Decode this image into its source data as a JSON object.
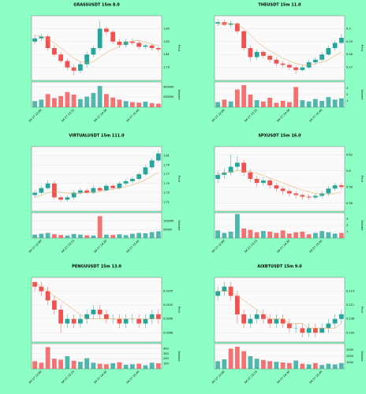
{
  "chart_data": [
    {
      "type": "candlestick",
      "title": "GRASSUSDT 15m 8.0",
      "ylabel": "Price",
      "categories": [
        null,
        "04-27 12:00",
        null,
        null,
        null,
        null,
        "04-27 13:15",
        null,
        null,
        null,
        null,
        "04-27 14:30",
        null,
        null,
        null,
        null,
        "04-27 15:45",
        null,
        null,
        null
      ],
      "open": [
        1.83,
        1.835,
        1.838,
        1.82,
        1.81,
        1.8,
        1.79,
        1.785,
        1.795,
        1.81,
        1.82,
        1.85,
        1.845,
        1.83,
        1.825,
        1.83,
        1.828,
        1.822,
        1.824,
        1.82
      ],
      "high": [
        1.84,
        1.842,
        1.841,
        1.824,
        1.814,
        1.804,
        1.794,
        1.799,
        1.814,
        1.824,
        1.862,
        1.853,
        1.848,
        1.834,
        1.834,
        1.834,
        1.831,
        1.827,
        1.827,
        1.823
      ],
      "low": [
        1.826,
        1.831,
        1.816,
        1.806,
        1.796,
        1.786,
        1.778,
        1.781,
        1.79,
        1.806,
        1.816,
        1.84,
        1.826,
        1.82,
        1.821,
        1.825,
        1.818,
        1.819,
        1.816,
        1.814
      ],
      "close": [
        1.835,
        1.838,
        1.82,
        1.81,
        1.8,
        1.79,
        1.785,
        1.795,
        1.81,
        1.82,
        1.85,
        1.845,
        1.83,
        1.825,
        1.83,
        1.828,
        1.822,
        1.824,
        1.82,
        1.818
      ],
      "ma": [
        1.84,
        1.838,
        1.834,
        1.828,
        1.82,
        1.812,
        1.804,
        1.799,
        1.797,
        1.799,
        1.806,
        1.813,
        1.818,
        1.823,
        1.828,
        1.831,
        1.832,
        1.829,
        1.826,
        1.824
      ],
      "ylim": [
        1.77,
        1.87
      ],
      "yticks": [
        1.79,
        1.81,
        1.83,
        1.85
      ],
      "volume": {
        "ylabel": "Volume",
        "values": [
          120000,
          150000,
          260000,
          180000,
          220000,
          300000,
          250000,
          160000,
          210000,
          280000,
          420000,
          260000,
          190000,
          150000,
          120000,
          100000,
          90000,
          110000,
          80000,
          70000
        ],
        "ylim": [
          0,
          500000
        ],
        "yticks": [
          200000,
          400000
        ]
      },
      "up_color": "#26a69a",
      "down_color": "#ef5350",
      "ma_color": "#e0a050"
    },
    {
      "type": "candlestick",
      "title": "THEUSDT 15m 11.0",
      "ylabel": "Price",
      "categories": [
        null,
        "04-27 12:00",
        null,
        null,
        null,
        null,
        "04-27 13:15",
        null,
        null,
        null,
        null,
        "04-27 14:30",
        null,
        null,
        null,
        null,
        "04-27 15:45",
        null,
        null,
        null
      ],
      "open": [
        0.304,
        0.305,
        0.303,
        0.304,
        0.298,
        0.285,
        0.278,
        0.282,
        0.279,
        0.276,
        0.273,
        0.272,
        0.27,
        0.268,
        0.27,
        0.274,
        0.276,
        0.28,
        0.285,
        0.289
      ],
      "high": [
        0.307,
        0.307,
        0.306,
        0.305,
        0.299,
        0.287,
        0.284,
        0.283,
        0.28,
        0.278,
        0.275,
        0.274,
        0.271,
        0.272,
        0.276,
        0.278,
        0.282,
        0.287,
        0.291,
        0.296
      ],
      "low": [
        0.302,
        0.302,
        0.301,
        0.296,
        0.283,
        0.275,
        0.276,
        0.277,
        0.274,
        0.271,
        0.27,
        0.268,
        0.265,
        0.267,
        0.269,
        0.272,
        0.275,
        0.279,
        0.283,
        0.288
      ],
      "close": [
        0.305,
        0.303,
        0.304,
        0.298,
        0.285,
        0.278,
        0.282,
        0.279,
        0.276,
        0.273,
        0.272,
        0.27,
        0.268,
        0.27,
        0.274,
        0.276,
        0.28,
        0.285,
        0.289,
        0.293
      ],
      "ma": [
        0.303,
        0.304,
        0.304,
        0.303,
        0.3,
        0.295,
        0.29,
        0.286,
        0.283,
        0.28,
        0.277,
        0.275,
        0.273,
        0.272,
        0.272,
        0.273,
        0.274,
        0.276,
        0.279,
        0.282
      ],
      "ylim": [
        0.26,
        0.31
      ],
      "yticks": [
        0.27,
        0.28,
        0.29,
        0.3
      ],
      "volume": {
        "ylabel": "Volume",
        "values": [
          0.8,
          1.2,
          0.9,
          2.8,
          3.5,
          2,
          1.1,
          0.9,
          1.5,
          0.7,
          1,
          0.8,
          3.2,
          1.1,
          0.9,
          1.3,
          1,
          1.6,
          1.2,
          1.4
        ],
        "ylim": [
          0,
          4
        ],
        "yticks": [
          1,
          2,
          3
        ]
      },
      "up_color": "#26a69a",
      "down_color": "#ef5350",
      "ma_color": "#e0a050"
    },
    {
      "type": "candlestick",
      "title": "VIRTUALUSDT 15m 111.0",
      "ylabel": "Price",
      "categories": [
        null,
        "04-27 12:00",
        null,
        null,
        null,
        null,
        "04-27 13:15",
        null,
        null,
        null,
        null,
        "04-27 14:30",
        null,
        null,
        null,
        null,
        "04-27 15:45",
        null,
        null,
        null
      ],
      "open": [
        1.725,
        1.73,
        1.74,
        1.75,
        1.72,
        1.715,
        1.72,
        1.73,
        1.735,
        1.73,
        1.74,
        1.735,
        1.745,
        1.74,
        1.75,
        1.755,
        1.76,
        1.77,
        1.785,
        1.8
      ],
      "high": [
        1.735,
        1.745,
        1.757,
        1.755,
        1.724,
        1.724,
        1.735,
        1.74,
        1.739,
        1.745,
        1.743,
        1.749,
        1.748,
        1.754,
        1.759,
        1.764,
        1.774,
        1.79,
        1.805,
        1.822
      ],
      "low": [
        1.72,
        1.726,
        1.736,
        1.716,
        1.71,
        1.711,
        1.716,
        1.726,
        1.727,
        1.727,
        1.731,
        1.732,
        1.737,
        1.737,
        1.746,
        1.751,
        1.756,
        1.766,
        1.781,
        1.796
      ],
      "close": [
        1.73,
        1.74,
        1.75,
        1.72,
        1.715,
        1.72,
        1.73,
        1.735,
        1.73,
        1.74,
        1.735,
        1.745,
        1.74,
        1.75,
        1.755,
        1.76,
        1.77,
        1.785,
        1.8,
        1.815
      ],
      "ma": [
        1.72,
        1.724,
        1.73,
        1.733,
        1.731,
        1.729,
        1.728,
        1.729,
        1.73,
        1.732,
        1.733,
        1.735,
        1.737,
        1.74,
        1.743,
        1.747,
        1.752,
        1.758,
        1.766,
        1.775
      ],
      "ylim": [
        1.69,
        1.83
      ],
      "yticks": [
        1.71,
        1.73,
        1.75,
        1.77,
        1.79,
        1.81
      ],
      "volume": {
        "ylabel": "Volume",
        "values": [
          20000,
          25000,
          30000,
          22000,
          18000,
          15000,
          24000,
          20000,
          16000,
          14000,
          130000,
          20000,
          18000,
          22000,
          17000,
          25000,
          30000,
          28000,
          35000,
          40000
        ],
        "ylim": [
          0,
          150000
        ],
        "yticks": [
          50000,
          100000
        ]
      },
      "up_color": "#26a69a",
      "down_color": "#ef5350",
      "ma_color": "#e0a050"
    },
    {
      "type": "candlestick",
      "title": "SPXUSDT 15m 16.0",
      "ylabel": "Price",
      "categories": [
        null,
        "04-27 12:00",
        null,
        null,
        null,
        null,
        "04-27 13:15",
        null,
        null,
        null,
        null,
        "04-27 14:30",
        null,
        null,
        null,
        null,
        "04-27 15:45",
        null,
        null,
        null
      ],
      "open": [
        0.59,
        0.595,
        0.598,
        0.605,
        0.61,
        0.598,
        0.59,
        0.585,
        0.588,
        0.582,
        0.578,
        0.575,
        0.572,
        0.57,
        0.568,
        0.567,
        0.569,
        0.572,
        0.578,
        0.582
      ],
      "high": [
        0.6,
        0.603,
        0.62,
        0.618,
        0.614,
        0.602,
        0.594,
        0.592,
        0.591,
        0.585,
        0.581,
        0.578,
        0.575,
        0.572,
        0.571,
        0.572,
        0.575,
        0.581,
        0.585,
        0.585
      ],
      "low": [
        0.585,
        0.59,
        0.594,
        0.6,
        0.594,
        0.586,
        0.58,
        0.582,
        0.578,
        0.574,
        0.571,
        0.568,
        0.566,
        0.564,
        0.564,
        0.565,
        0.566,
        0.569,
        0.575,
        0.577
      ],
      "close": [
        0.595,
        0.598,
        0.605,
        0.61,
        0.598,
        0.59,
        0.585,
        0.588,
        0.582,
        0.578,
        0.575,
        0.572,
        0.57,
        0.568,
        0.567,
        0.569,
        0.572,
        0.578,
        0.582,
        0.58
      ],
      "ma": [
        0.596,
        0.597,
        0.599,
        0.6,
        0.6,
        0.599,
        0.597,
        0.594,
        0.591,
        0.588,
        0.585,
        0.582,
        0.579,
        0.576,
        0.574,
        0.572,
        0.571,
        0.571,
        0.572,
        0.574
      ],
      "ylim": [
        0.55,
        0.63
      ],
      "yticks": [
        0.56,
        0.58,
        0.6,
        0.62
      ],
      "volume": {
        "ylabel": "Volume",
        "values": [
          1.2,
          0.8,
          1,
          3.8,
          1.5,
          1.3,
          0.9,
          1.1,
          1,
          0.8,
          1.2,
          0.7,
          0.9,
          1,
          0.6,
          0.8,
          1.1,
          0.9,
          0.7,
          0.8
        ],
        "ylim": [
          0,
          4
        ],
        "yticks": [
          1,
          2,
          3
        ]
      },
      "up_color": "#26a69a",
      "down_color": "#ef5350",
      "ma_color": "#e0a050"
    },
    {
      "type": "candlestick",
      "title": "PENGUUSDT 15m 13.0",
      "ylabel": "Price",
      "categories": [
        null,
        "04-27 12:00",
        null,
        null,
        null,
        null,
        "04-27 13:15",
        null,
        null,
        null,
        null,
        "04-27 14:30",
        null,
        null,
        null,
        null,
        "04-27 15:45",
        null,
        null,
        null
      ],
      "open": [
        0.0107,
        0.0106,
        0.0105,
        0.0103,
        0.0101,
        0.0098,
        0.0099,
        0.0098,
        0.0099,
        0.01,
        0.0101,
        0.01,
        0.0099,
        0.0099,
        0.0098,
        0.0099,
        0.0099,
        0.0098,
        0.0099,
        0.01
      ],
      "high": [
        0.0107,
        0.0107,
        0.0106,
        0.0104,
        0.0102,
        0.01,
        0.01,
        0.01,
        0.0101,
        0.0102,
        0.0102,
        0.0101,
        0.01,
        0.01,
        0.01,
        0.01,
        0.01,
        0.01,
        0.0101,
        0.0101
      ],
      "low": [
        0.0105,
        0.0104,
        0.0102,
        0.01,
        0.0096,
        0.0097,
        0.0097,
        0.0097,
        0.0098,
        0.0099,
        0.0099,
        0.0098,
        0.0098,
        0.0097,
        0.0097,
        0.0098,
        0.0097,
        0.0097,
        0.0098,
        0.0098
      ],
      "close": [
        0.0106,
        0.0105,
        0.0103,
        0.0101,
        0.0098,
        0.0099,
        0.0098,
        0.0099,
        0.01,
        0.0101,
        0.01,
        0.0099,
        0.0099,
        0.0098,
        0.0099,
        0.0099,
        0.0098,
        0.0099,
        0.01,
        0.0099
      ],
      "ma": [
        0.0107,
        0.0106,
        0.0105,
        0.0104,
        0.0103,
        0.0102,
        0.0101,
        0.01,
        0.0099,
        0.0099,
        0.0099,
        0.0099,
        0.0099,
        0.0099,
        0.0099,
        0.0099,
        0.0099,
        0.0099,
        0.0099,
        0.0099
      ],
      "ylim": [
        0.0094,
        0.0108
      ],
      "yticks": [
        0.0096,
        0.0099,
        0.0102,
        0.0105
      ],
      "volume": {
        "ylabel": "Volume",
        "values": [
          150,
          120,
          430,
          200,
          180,
          250,
          160,
          140,
          210,
          120,
          100,
          90,
          110,
          130,
          80,
          90,
          100,
          70,
          120,
          110
        ],
        "ylim": [
          0,
          500
        ],
        "yticks": [
          100,
          200,
          300,
          400
        ]
      },
      "up_color": "#26a69a",
      "down_color": "#ef5350",
      "ma_color": "#e0a050"
    },
    {
      "type": "candlestick",
      "title": "AIXBTUSDT 15m 9.0",
      "ylabel": "Price",
      "categories": [
        null,
        "04-27 12:00",
        null,
        null,
        null,
        null,
        "04-27 13:15",
        null,
        null,
        null,
        null,
        "04-27 14:30",
        null,
        null,
        null,
        null,
        "04-27 15:45",
        null,
        null,
        null
      ],
      "open": [
        0.113,
        0.114,
        0.115,
        0.113,
        0.109,
        0.107,
        0.108,
        0.109,
        0.108,
        0.107,
        0.108,
        0.107,
        0.106,
        0.106,
        0.105,
        0.106,
        0.105,
        0.106,
        0.107,
        0.108
      ],
      "high": [
        0.115,
        0.116,
        0.116,
        0.114,
        0.11,
        0.109,
        0.11,
        0.11,
        0.109,
        0.109,
        0.109,
        0.108,
        0.107,
        0.107,
        0.107,
        0.107,
        0.107,
        0.108,
        0.109,
        0.11
      ],
      "low": [
        0.112,
        0.113,
        0.112,
        0.107,
        0.106,
        0.106,
        0.107,
        0.107,
        0.106,
        0.106,
        0.106,
        0.105,
        0.105,
        0.104,
        0.104,
        0.104,
        0.105,
        0.105,
        0.106,
        0.107
      ],
      "close": [
        0.114,
        0.115,
        0.113,
        0.109,
        0.107,
        0.108,
        0.109,
        0.108,
        0.107,
        0.108,
        0.107,
        0.106,
        0.106,
        0.105,
        0.106,
        0.105,
        0.106,
        0.107,
        0.108,
        0.109
      ],
      "ma": [
        0.114,
        0.114,
        0.114,
        0.113,
        0.112,
        0.111,
        0.11,
        0.109,
        0.108,
        0.108,
        0.108,
        0.107,
        0.107,
        0.107,
        0.106,
        0.106,
        0.106,
        0.106,
        0.106,
        0.107
      ],
      "ylim": [
        0.103,
        0.117
      ],
      "yticks": [
        0.105,
        0.108,
        0.111,
        0.114
      ],
      "volume": {
        "ylabel": "Volume",
        "values": [
          1200,
          1500,
          3200,
          3500,
          2800,
          2000,
          1600,
          1400,
          1200,
          1100,
          1000,
          900,
          1300,
          800,
          700,
          900,
          600,
          800,
          700,
          900
        ],
        "ylim": [
          0,
          4000
        ],
        "yticks": [
          1000,
          2000,
          3000
        ]
      },
      "up_color": "#26a69a",
      "down_color": "#ef5350",
      "ma_color": "#e0a050"
    }
  ]
}
